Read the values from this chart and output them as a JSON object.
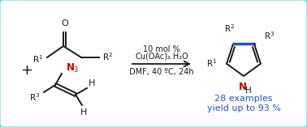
{
  "bg_color": "#ffffff",
  "border_color": "#4dd9d0",
  "blue_color": "#2255cc",
  "red_color": "#cc0000",
  "black_color": "#1a1a1a",
  "condition_line1": "10 mol %",
  "condition_line2": "Cu(OAc)₂.H₂O",
  "condition_line3": "DMF, 40 ºC, 24h",
  "result_line1": "28 examples",
  "result_line2": "yield up to 93 %"
}
